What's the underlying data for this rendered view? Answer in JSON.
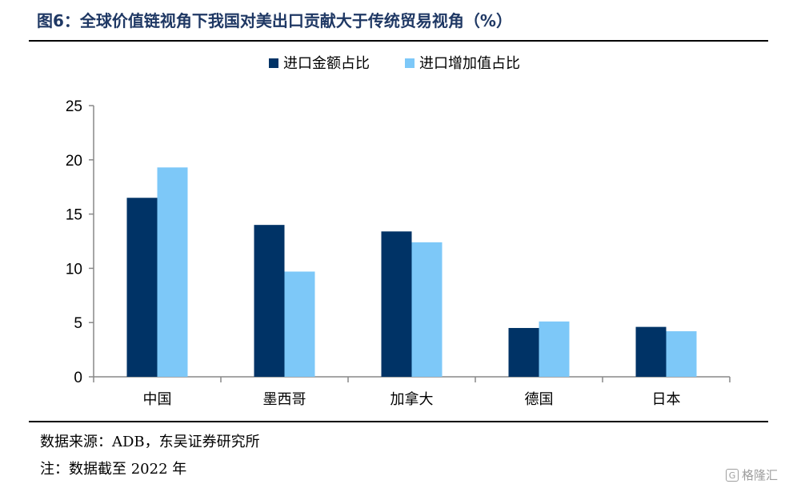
{
  "figure": {
    "title": "图6：全球价值链视角下我国对美出口贡献大于传统贸易视角（%）",
    "source": "数据来源：ADB，东吴证券研究所",
    "note": "注：数据截至 2022 年",
    "watermark": "格隆汇",
    "watermark_mark": "G"
  },
  "colors": {
    "series1": "#003366",
    "series2": "#7dc8f8",
    "axis": "#888888",
    "title": "#1f3864"
  },
  "chart_data": {
    "type": "bar",
    "title": "",
    "xlabel": "",
    "ylabel": "",
    "categories": [
      "中国",
      "墨西哥",
      "加拿大",
      "德国",
      "日本"
    ],
    "series": [
      {
        "name": "进口金额占比",
        "values": [
          16.5,
          14.0,
          13.4,
          4.5,
          4.6
        ]
      },
      {
        "name": "进口增加值占比",
        "values": [
          19.3,
          9.7,
          12.4,
          5.1,
          4.2
        ]
      }
    ],
    "ylim": [
      0,
      25
    ],
    "yticks": [
      "0",
      "5",
      "10",
      "15",
      "20",
      "25"
    ],
    "grid": false,
    "legend": "top-center"
  }
}
